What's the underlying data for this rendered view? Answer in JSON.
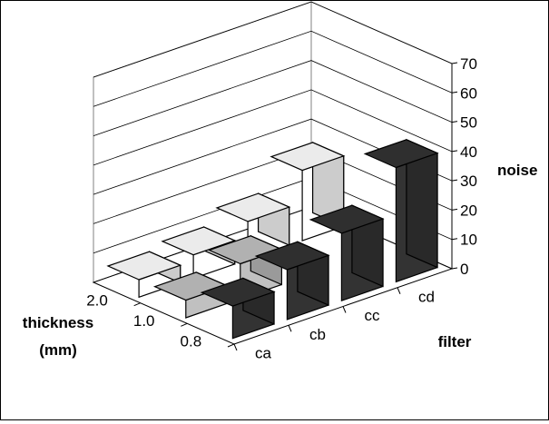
{
  "chart_data": {
    "type": "bar3d",
    "title": "",
    "x_categories": [
      "ca",
      "cb",
      "cc",
      "cd"
    ],
    "depth_categories": [
      "0.8",
      "1.0",
      "2.0"
    ],
    "xlabel": "filter",
    "depth_label": [
      "thickness",
      "(mm)"
    ],
    "ylabel": "noise",
    "ylim": [
      0,
      70
    ],
    "yticks": [
      0,
      10,
      20,
      30,
      40,
      50,
      60,
      70
    ],
    "series": [
      {
        "depth": "2.0",
        "values": [
          6,
          8,
          13,
          24
        ],
        "color": "#ffffff"
      },
      {
        "depth": "1.0",
        "values": [
          6,
          12,
          0,
          0
        ],
        "color": "#c0c0c0"
      },
      {
        "depth": "0.8",
        "values": [
          11,
          17,
          23,
          39
        ],
        "color": "#333333"
      }
    ],
    "grid": true,
    "legend": "none"
  }
}
